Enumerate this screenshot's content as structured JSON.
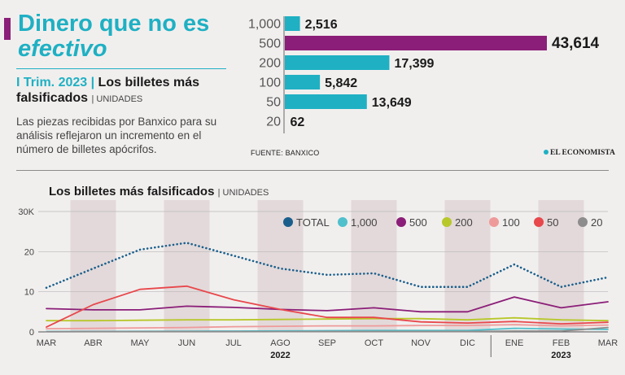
{
  "header": {
    "title_line1": "Dinero que no es",
    "title_line2": "efectivo",
    "period": "I Trim. 2023 |",
    "subtitle": "Los billetes más falsificados",
    "units": "| UNIDADES",
    "description": "Las piezas recibidas por Banxico para su análisis reflejaron un incremento en el número de billetes apócrifos."
  },
  "footer": {
    "source": "FUENTE: BANXICO",
    "brand": "EL ECONOMISTA"
  },
  "line_chart": {
    "title": "Los billetes más falsificados",
    "units": "| UNIDADES"
  },
  "colors": {
    "cyan": "#1fb0c3",
    "purple": "#8b1e78",
    "shade": "#e3d9da"
  },
  "chart_data": [
    {
      "type": "bar",
      "orientation": "horizontal",
      "categories": [
        "1,000",
        "500",
        "200",
        "100",
        "50",
        "20"
      ],
      "values": [
        2516,
        43614,
        17399,
        5842,
        13649,
        62
      ],
      "value_labels": [
        "2,516",
        "43,614",
        "17,399",
        "5,842",
        "13,649",
        "62"
      ],
      "colors": [
        "#1fb0c3",
        "#8b1e78",
        "#1fb0c3",
        "#1fb0c3",
        "#1fb0c3",
        "#1fb0c3"
      ]
    },
    {
      "type": "line",
      "x": [
        "MAR",
        "ABR",
        "MAY",
        "JUN",
        "JUL",
        "AGO",
        "SEP",
        "OCT",
        "NOV",
        "DIC",
        "ENE",
        "FEB",
        "MAR"
      ],
      "year_labels": [
        {
          "label": "2022",
          "at": "AGO"
        },
        {
          "label": "2023",
          "at": "FEB"
        }
      ],
      "y_ticks": [
        "0",
        "10",
        "20",
        "30K"
      ],
      "ylim": [
        0,
        30000
      ],
      "shaded_months": [
        "ABR",
        "JUN",
        "AGO",
        "OCT",
        "DIC",
        "FEB"
      ],
      "series": [
        {
          "name": "TOTAL",
          "color": "#1a5f8c",
          "dotted": true,
          "values": [
            11000,
            15800,
            20500,
            22200,
            19000,
            15800,
            14200,
            14600,
            11200,
            11200,
            16800,
            11200,
            13600
          ]
        },
        {
          "name": "1,000",
          "color": "#4fc0cc",
          "values": [
            100,
            120,
            150,
            180,
            200,
            250,
            300,
            350,
            350,
            350,
            900,
            700,
            600
          ]
        },
        {
          "name": "500",
          "color": "#8b1e78",
          "values": [
            5800,
            5500,
            5500,
            6400,
            6100,
            5600,
            5300,
            6000,
            5000,
            5000,
            8700,
            6000,
            7500
          ]
        },
        {
          "name": "200",
          "color": "#b8c72a",
          "values": [
            2800,
            2800,
            2900,
            3000,
            3000,
            3100,
            3200,
            3300,
            3300,
            3000,
            3500,
            3000,
            2800
          ]
        },
        {
          "name": "100",
          "color": "#ef9a9a",
          "values": [
            800,
            900,
            1000,
            1100,
            1300,
            1400,
            1500,
            1500,
            1600,
            1600,
            1800,
            1500,
            1700
          ]
        },
        {
          "name": "50",
          "color": "#e8474b",
          "values": [
            1200,
            6800,
            10600,
            11400,
            8000,
            5600,
            3600,
            3600,
            2500,
            2200,
            2600,
            2000,
            2400
          ]
        },
        {
          "name": "20",
          "color": "#8d8d8d",
          "values": [
            50,
            60,
            60,
            60,
            70,
            80,
            100,
            100,
            100,
            100,
            200,
            200,
            1100
          ]
        }
      ]
    }
  ]
}
